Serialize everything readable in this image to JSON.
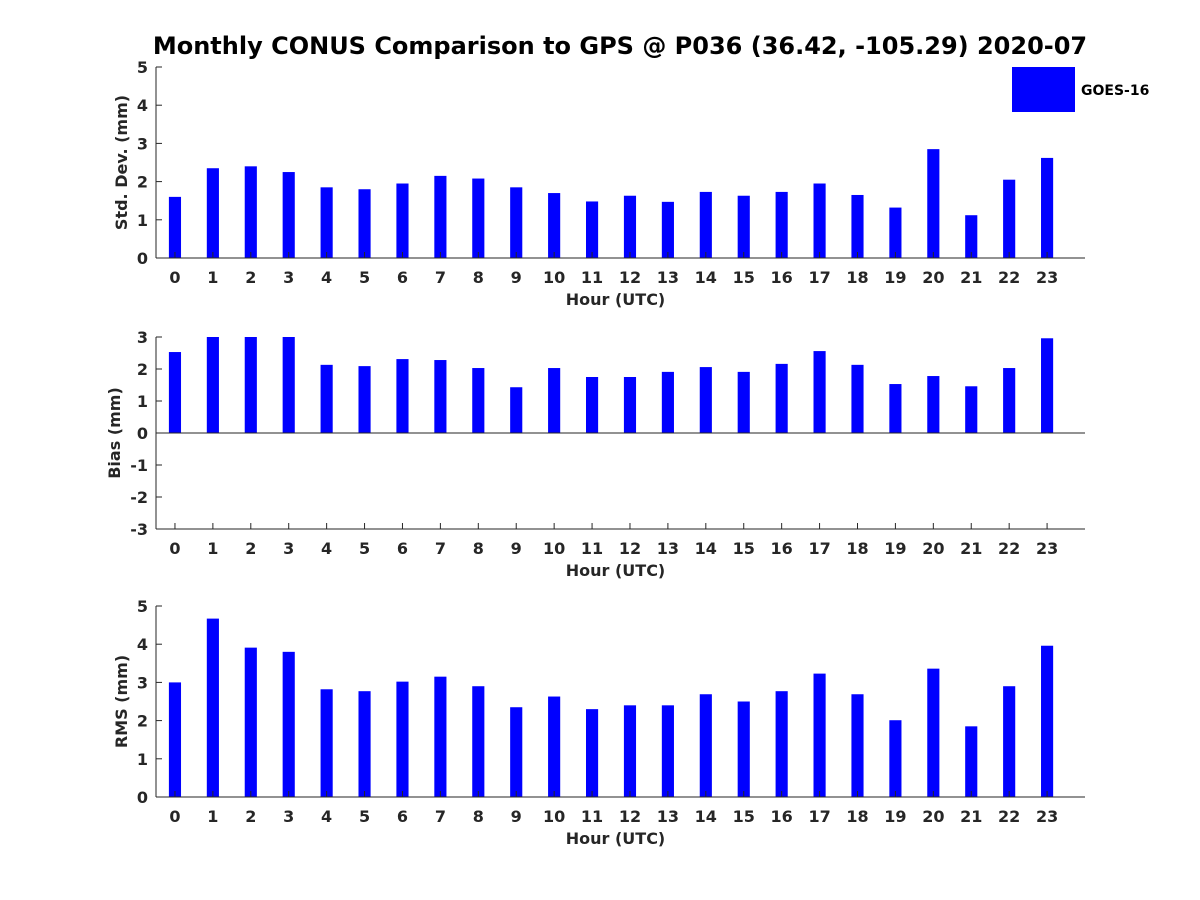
{
  "figure": {
    "title": "Monthly CONUS Comparison to GPS @ P036 (36.42, -105.29) 2020-07",
    "legend_label": "GOES-16",
    "bar_color": "#0000ff"
  },
  "chart_data": [
    {
      "type": "bar",
      "title": "Monthly CONUS Comparison to GPS @ P036 (36.42, -105.29) 2020-07",
      "xlabel": "Hour (UTC)",
      "ylabel": "Std. Dev. (mm)",
      "ylim": [
        0,
        5
      ],
      "yticks": [
        0,
        1,
        2,
        3,
        4,
        5
      ],
      "categories": [
        "0",
        "1",
        "2",
        "3",
        "4",
        "5",
        "6",
        "7",
        "8",
        "9",
        "10",
        "11",
        "12",
        "13",
        "14",
        "15",
        "16",
        "17",
        "18",
        "19",
        "20",
        "21",
        "22",
        "23"
      ],
      "series": [
        {
          "name": "GOES-16",
          "color": "#0000ff",
          "values": [
            1.6,
            2.35,
            2.4,
            2.25,
            1.85,
            1.8,
            1.95,
            2.15,
            2.08,
            1.85,
            1.7,
            1.48,
            1.63,
            1.47,
            1.73,
            1.63,
            1.73,
            1.95,
            1.65,
            1.32,
            2.85,
            1.12,
            2.05,
            2.62
          ]
        }
      ],
      "legend": "top-right",
      "grid": false
    },
    {
      "type": "bar",
      "xlabel": "Hour (UTC)",
      "ylabel": "Bias (mm)",
      "ylim": [
        -3,
        3
      ],
      "yticks": [
        -3,
        -2,
        -1,
        0,
        1,
        2,
        3
      ],
      "categories": [
        "0",
        "1",
        "2",
        "3",
        "4",
        "5",
        "6",
        "7",
        "8",
        "9",
        "10",
        "11",
        "12",
        "13",
        "14",
        "15",
        "16",
        "17",
        "18",
        "19",
        "20",
        "21",
        "22",
        "23"
      ],
      "series": [
        {
          "name": "GOES-16",
          "color": "#0000ff",
          "values": [
            2.53,
            3.0,
            3.0,
            3.0,
            2.13,
            2.09,
            2.31,
            2.28,
            2.03,
            1.43,
            2.03,
            1.75,
            1.75,
            1.91,
            2.06,
            1.91,
            2.16,
            2.56,
            2.13,
            1.53,
            1.78,
            1.46,
            2.03,
            2.96
          ]
        }
      ],
      "grid": false
    },
    {
      "type": "bar",
      "xlabel": "Hour (UTC)",
      "ylabel": "RMS (mm)",
      "ylim": [
        0,
        5
      ],
      "yticks": [
        0,
        1,
        2,
        3,
        4,
        5
      ],
      "categories": [
        "0",
        "1",
        "2",
        "3",
        "4",
        "5",
        "6",
        "7",
        "8",
        "9",
        "10",
        "11",
        "12",
        "13",
        "14",
        "15",
        "16",
        "17",
        "18",
        "19",
        "20",
        "21",
        "22",
        "23"
      ],
      "series": [
        {
          "name": "GOES-16",
          "color": "#0000ff",
          "values": [
            3.0,
            4.67,
            3.91,
            3.8,
            2.82,
            2.77,
            3.02,
            3.15,
            2.9,
            2.35,
            2.63,
            2.3,
            2.4,
            2.4,
            2.69,
            2.5,
            2.77,
            3.23,
            2.69,
            2.01,
            3.36,
            1.85,
            2.9,
            3.96
          ]
        }
      ],
      "grid": false
    }
  ]
}
